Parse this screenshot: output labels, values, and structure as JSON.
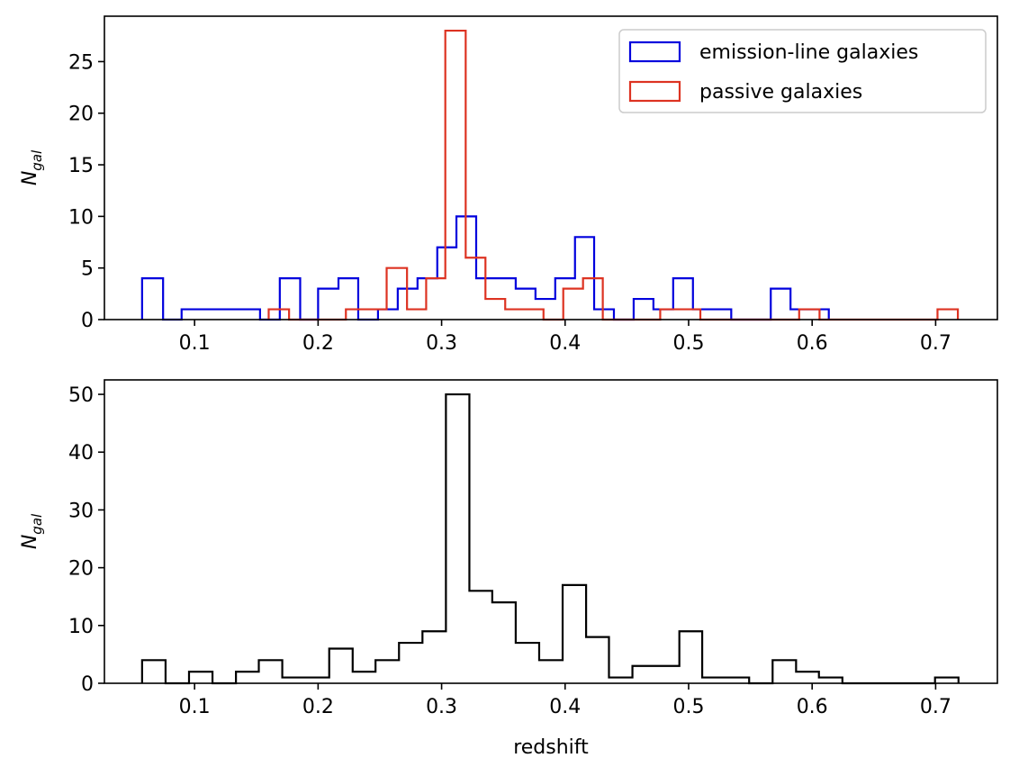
{
  "chart_data": [
    {
      "type": "histogram-step",
      "ylabel": "N",
      "ylabel_subscript": "gal",
      "xlabel": "",
      "xlim": [
        0.027,
        0.75
      ],
      "ylim": [
        0,
        29.4
      ],
      "xticks": [
        0.1,
        0.2,
        0.3,
        0.4,
        0.5,
        0.6,
        0.7
      ],
      "xtick_labels": [
        "0.1",
        "0.2",
        "0.3",
        "0.4",
        "0.5",
        "0.6",
        "0.7"
      ],
      "yticks": [
        0,
        5,
        10,
        15,
        20,
        25
      ],
      "ytick_labels": [
        "0",
        "5",
        "10",
        "15",
        "20",
        "25"
      ],
      "legend_position": "upper-right",
      "series": [
        {
          "name": "emission-line galaxies",
          "color": "#0000dd",
          "bins": [
            {
              "x0": 0.0575,
              "x1": 0.0745,
              "count": 4
            },
            {
              "x0": 0.0745,
              "x1": 0.0895,
              "count": 0
            },
            {
              "x0": 0.0895,
              "x1": 0.153,
              "count": 1
            },
            {
              "x0": 0.153,
              "x1": 0.169,
              "count": 0
            },
            {
              "x0": 0.169,
              "x1": 0.1855,
              "count": 4
            },
            {
              "x0": 0.1855,
              "x1": 0.2,
              "count": 0
            },
            {
              "x0": 0.2,
              "x1": 0.2165,
              "count": 3
            },
            {
              "x0": 0.2165,
              "x1": 0.2325,
              "count": 4
            },
            {
              "x0": 0.2325,
              "x1": 0.2485,
              "count": 0
            },
            {
              "x0": 0.2485,
              "x1": 0.2645,
              "count": 1
            },
            {
              "x0": 0.2645,
              "x1": 0.2805,
              "count": 3
            },
            {
              "x0": 0.2805,
              "x1": 0.2965,
              "count": 4
            },
            {
              "x0": 0.2965,
              "x1": 0.312,
              "count": 7
            },
            {
              "x0": 0.312,
              "x1": 0.328,
              "count": 10
            },
            {
              "x0": 0.328,
              "x1": 0.344,
              "count": 4
            },
            {
              "x0": 0.344,
              "x1": 0.36,
              "count": 4
            },
            {
              "x0": 0.36,
              "x1": 0.376,
              "count": 3
            },
            {
              "x0": 0.376,
              "x1": 0.392,
              "count": 2
            },
            {
              "x0": 0.392,
              "x1": 0.408,
              "count": 4
            },
            {
              "x0": 0.408,
              "x1": 0.4235,
              "count": 8
            },
            {
              "x0": 0.4235,
              "x1": 0.4395,
              "count": 1
            },
            {
              "x0": 0.4395,
              "x1": 0.4555,
              "count": 0
            },
            {
              "x0": 0.4555,
              "x1": 0.4715,
              "count": 2
            },
            {
              "x0": 0.4715,
              "x1": 0.4875,
              "count": 1
            },
            {
              "x0": 0.4875,
              "x1": 0.5035,
              "count": 4
            },
            {
              "x0": 0.5035,
              "x1": 0.5345,
              "count": 1
            },
            {
              "x0": 0.5345,
              "x1": 0.5665,
              "count": 0
            },
            {
              "x0": 0.5665,
              "x1": 0.5825,
              "count": 3
            },
            {
              "x0": 0.5825,
              "x1": 0.6135,
              "count": 1
            }
          ]
        },
        {
          "name": "passive galaxies",
          "color": "#dd3322",
          "bins": [
            {
              "x0": 0.16,
              "x1": 0.1765,
              "count": 1
            },
            {
              "x0": 0.1765,
              "x1": 0.2225,
              "count": 0
            },
            {
              "x0": 0.2225,
              "x1": 0.2555,
              "count": 1
            },
            {
              "x0": 0.2555,
              "x1": 0.272,
              "count": 5
            },
            {
              "x0": 0.272,
              "x1": 0.2875,
              "count": 1
            },
            {
              "x0": 0.2875,
              "x1": 0.303,
              "count": 4
            },
            {
              "x0": 0.303,
              "x1": 0.3195,
              "count": 28
            },
            {
              "x0": 0.3195,
              "x1": 0.3355,
              "count": 6
            },
            {
              "x0": 0.3355,
              "x1": 0.3515,
              "count": 2
            },
            {
              "x0": 0.3515,
              "x1": 0.3825,
              "count": 1
            },
            {
              "x0": 0.3825,
              "x1": 0.3985,
              "count": 0
            },
            {
              "x0": 0.3985,
              "x1": 0.4145,
              "count": 3
            },
            {
              "x0": 0.4145,
              "x1": 0.4305,
              "count": 4
            },
            {
              "x0": 0.4305,
              "x1": 0.477,
              "count": 0
            },
            {
              "x0": 0.477,
              "x1": 0.5095,
              "count": 1
            },
            {
              "x0": 0.5095,
              "x1": 0.5895,
              "count": 0
            },
            {
              "x0": 0.5895,
              "x1": 0.606,
              "count": 1
            },
            {
              "x0": 0.606,
              "x1": 0.7015,
              "count": 0
            },
            {
              "x0": 0.7015,
              "x1": 0.718,
              "count": 1
            }
          ]
        }
      ]
    },
    {
      "type": "histogram-step",
      "ylabel": "N",
      "ylabel_subscript": "gal",
      "xlabel": "redshift",
      "xlim": [
        0.027,
        0.75
      ],
      "ylim": [
        0,
        52.5
      ],
      "xticks": [
        0.1,
        0.2,
        0.3,
        0.4,
        0.5,
        0.6,
        0.7
      ],
      "xtick_labels": [
        "0.1",
        "0.2",
        "0.3",
        "0.4",
        "0.5",
        "0.6",
        "0.7"
      ],
      "yticks": [
        0,
        10,
        20,
        30,
        40,
        50
      ],
      "ytick_labels": [
        "0",
        "10",
        "20",
        "30",
        "40",
        "50"
      ],
      "series": [
        {
          "name": "",
          "color": "#000000",
          "bins": [
            {
              "x0": 0.0575,
              "x1": 0.0765,
              "count": 4
            },
            {
              "x0": 0.0765,
              "x1": 0.0955,
              "count": 0
            },
            {
              "x0": 0.0955,
              "x1": 0.1145,
              "count": 2
            },
            {
              "x0": 0.1145,
              "x1": 0.1335,
              "count": 0
            },
            {
              "x0": 0.1335,
              "x1": 0.152,
              "count": 2
            },
            {
              "x0": 0.152,
              "x1": 0.171,
              "count": 4
            },
            {
              "x0": 0.171,
              "x1": 0.209,
              "count": 1
            },
            {
              "x0": 0.209,
              "x1": 0.228,
              "count": 6
            },
            {
              "x0": 0.228,
              "x1": 0.2465,
              "count": 2
            },
            {
              "x0": 0.2465,
              "x1": 0.2655,
              "count": 4
            },
            {
              "x0": 0.2655,
              "x1": 0.2845,
              "count": 7
            },
            {
              "x0": 0.2845,
              "x1": 0.3035,
              "count": 9
            },
            {
              "x0": 0.3035,
              "x1": 0.3225,
              "count": 50
            },
            {
              "x0": 0.3225,
              "x1": 0.341,
              "count": 16
            },
            {
              "x0": 0.341,
              "x1": 0.36,
              "count": 14
            },
            {
              "x0": 0.36,
              "x1": 0.379,
              "count": 7
            },
            {
              "x0": 0.379,
              "x1": 0.398,
              "count": 4
            },
            {
              "x0": 0.398,
              "x1": 0.417,
              "count": 17
            },
            {
              "x0": 0.417,
              "x1": 0.4355,
              "count": 8
            },
            {
              "x0": 0.4355,
              "x1": 0.4545,
              "count": 1
            },
            {
              "x0": 0.4545,
              "x1": 0.4925,
              "count": 3
            },
            {
              "x0": 0.4925,
              "x1": 0.511,
              "count": 9
            },
            {
              "x0": 0.511,
              "x1": 0.549,
              "count": 1
            },
            {
              "x0": 0.549,
              "x1": 0.568,
              "count": 0
            },
            {
              "x0": 0.568,
              "x1": 0.587,
              "count": 4
            },
            {
              "x0": 0.587,
              "x1": 0.6055,
              "count": 2
            },
            {
              "x0": 0.6055,
              "x1": 0.6245,
              "count": 1
            },
            {
              "x0": 0.6245,
              "x1": 0.6995,
              "count": 0
            },
            {
              "x0": 0.6995,
              "x1": 0.7185,
              "count": 1
            }
          ]
        }
      ]
    }
  ]
}
